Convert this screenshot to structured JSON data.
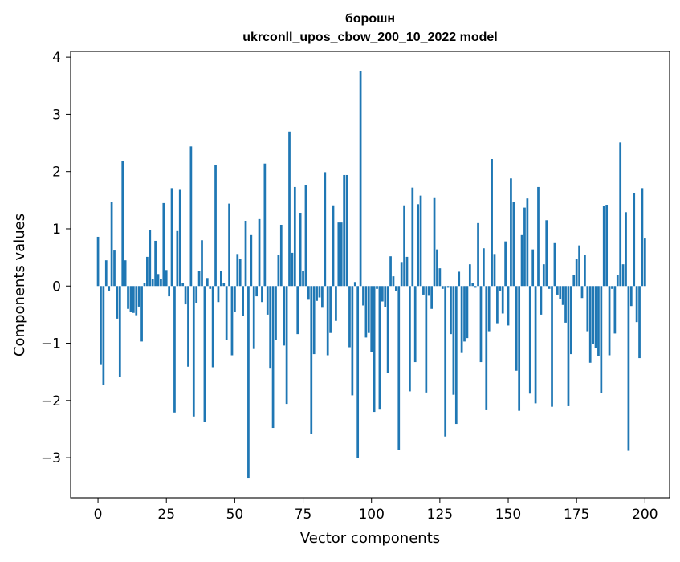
{
  "chart_data": {
    "type": "bar",
    "title_line1": "борошн",
    "title_line2": "ukrconll_upos_cbow_200_10_2022 model",
    "xlabel": "Vector components",
    "ylabel": "Components values",
    "xlim": [
      -10,
      209
    ],
    "ylim": [
      -3.7,
      4.1
    ],
    "xticks": [
      0,
      25,
      50,
      75,
      100,
      125,
      150,
      175,
      200
    ],
    "xtick_labels": [
      "0",
      "25",
      "50",
      "75",
      "100",
      "125",
      "150",
      "175",
      "200"
    ],
    "yticks": [
      -3,
      -2,
      -1,
      0,
      1,
      2,
      3,
      4
    ],
    "ytick_labels": [
      "−3",
      "−2",
      "−1",
      "0",
      "1",
      "2",
      "3",
      "4"
    ],
    "grid": false,
    "bar_color": "#1f77b4",
    "values": [
      0.86,
      -1.38,
      -1.73,
      0.45,
      -0.08,
      1.47,
      0.62,
      -0.57,
      -1.59,
      2.19,
      0.45,
      -0.4,
      -0.45,
      -0.47,
      -0.51,
      -0.36,
      -0.97,
      0.05,
      0.51,
      0.98,
      0.12,
      0.79,
      0.21,
      0.13,
      1.45,
      0.28,
      -0.18,
      1.71,
      -2.21,
      0.96,
      1.68,
      0.05,
      -0.32,
      -1.41,
      2.44,
      -2.28,
      -0.3,
      0.27,
      0.8,
      -2.38,
      0.14,
      -0.05,
      -1.42,
      2.11,
      -0.28,
      0.26,
      0.05,
      -0.94,
      1.44,
      -1.21,
      -0.45,
      0.56,
      0.48,
      -0.52,
      1.14,
      -3.35,
      0.89,
      -1.1,
      -0.18,
      1.17,
      -0.28,
      2.14,
      -0.5,
      -1.43,
      -2.48,
      -0.95,
      0.55,
      1.07,
      -1.04,
      -2.06,
      2.7,
      0.58,
      1.73,
      -0.84,
      1.28,
      0.26,
      1.77,
      -0.24,
      -2.58,
      -1.19,
      -0.26,
      -0.2,
      -0.38,
      1.99,
      -1.21,
      -0.82,
      1.41,
      -0.61,
      1.11,
      1.11,
      1.94,
      1.94,
      -1.07,
      -1.91,
      0.07,
      -3.01,
      3.75,
      -0.34,
      -0.9,
      -0.82,
      -1.16,
      -2.2,
      -0.05,
      -2.16,
      -0.27,
      -0.37,
      -1.52,
      0.52,
      0.17,
      -0.08,
      -2.86,
      0.42,
      1.41,
      0.51,
      -1.84,
      1.72,
      -1.33,
      1.43,
      1.58,
      -0.15,
      -1.86,
      -0.17,
      -0.4,
      1.55,
      0.64,
      0.31,
      -0.05,
      -2.63,
      -0.03,
      -0.84,
      -1.9,
      -2.41,
      0.25,
      -1.17,
      -0.97,
      -0.91,
      0.38,
      0.05,
      -0.03,
      1.1,
      -1.33,
      0.66,
      -2.17,
      -0.79,
      2.22,
      0.56,
      -0.65,
      -0.08,
      -0.48,
      0.78,
      -0.69,
      1.88,
      1.47,
      -1.48,
      -2.18,
      0.89,
      1.37,
      1.53,
      -1.88,
      0.64,
      -2.05,
      1.73,
      -0.5,
      0.38,
      1.15,
      -0.05,
      -2.11,
      0.75,
      -0.15,
      -0.23,
      -0.33,
      -0.64,
      -2.1,
      -1.19,
      0.2,
      0.48,
      0.71,
      -0.21,
      0.55,
      -0.79,
      -1.34,
      -1.02,
      -1.08,
      -1.22,
      -1.87,
      1.4,
      1.42,
      -1.21,
      -0.05,
      -0.83,
      0.19,
      2.51,
      0.38,
      1.29,
      -2.88,
      -0.35,
      1.62,
      -0.63,
      -1.26,
      1.71,
      0.83
    ]
  }
}
